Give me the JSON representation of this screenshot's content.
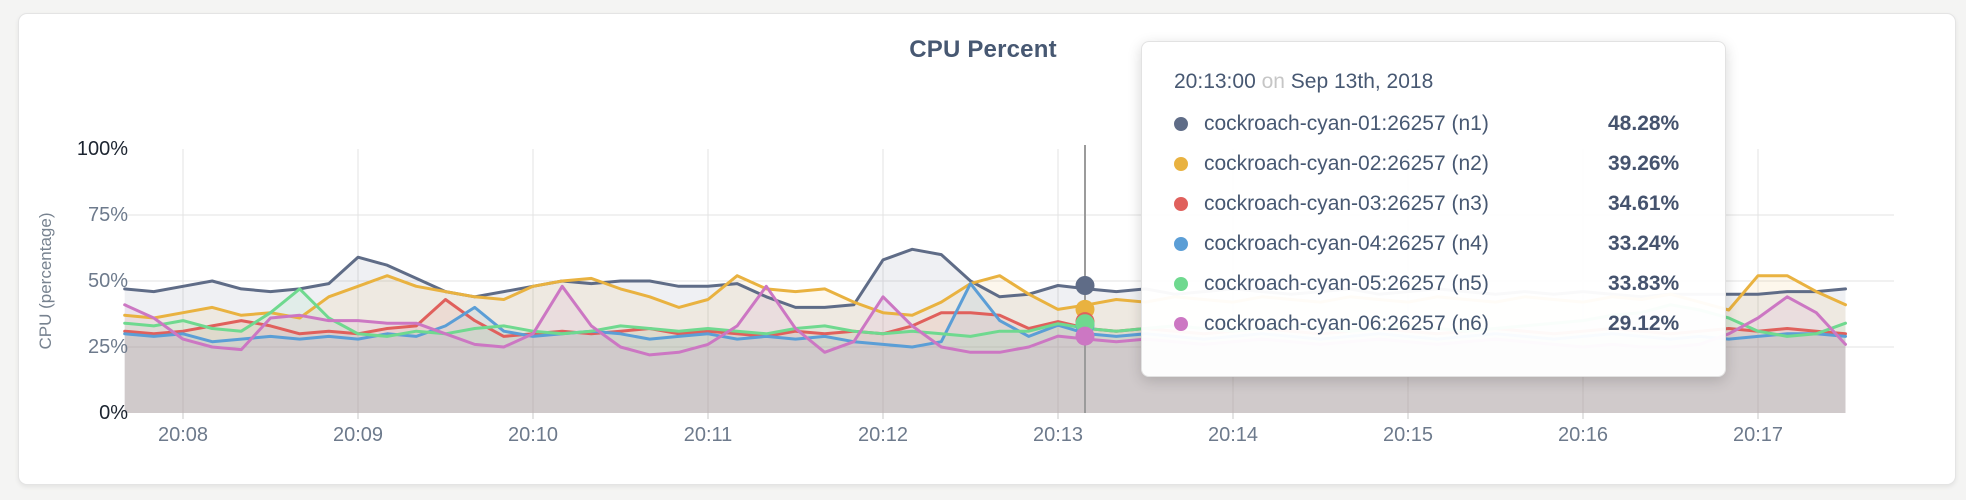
{
  "tooltip": {
    "time": "20:13:00",
    "on_word": "on",
    "date": "Sep 13th, 2018"
  },
  "chart_data": {
    "type": "line",
    "title": "CPU Percent",
    "ylabel": "CPU (percentage)",
    "ylim": [
      0,
      100
    ],
    "grid": true,
    "legend_position": "tooltip-only",
    "y_ticks": [
      {
        "label": "0%",
        "value": 0,
        "emphasis": true,
        "gridline": false
      },
      {
        "label": "25%",
        "value": 25,
        "emphasis": false,
        "gridline": true
      },
      {
        "label": "50%",
        "value": 50,
        "emphasis": false,
        "gridline": true
      },
      {
        "label": "75%",
        "value": 75,
        "emphasis": false,
        "gridline": true
      },
      {
        "label": "100%",
        "value": 100,
        "emphasis": true,
        "gridline": false
      }
    ],
    "x_ticks": [
      {
        "label": "20:08",
        "time": "20:08:00"
      },
      {
        "label": "20:09",
        "time": "20:09:00"
      },
      {
        "label": "20:10",
        "time": "20:10:00"
      },
      {
        "label": "20:11",
        "time": "20:11:00"
      },
      {
        "label": "20:12",
        "time": "20:12:00"
      },
      {
        "label": "20:13",
        "time": "20:13:00"
      },
      {
        "label": "20:14",
        "time": "20:14:00"
      },
      {
        "label": "20:15",
        "time": "20:15:00"
      },
      {
        "label": "20:16",
        "time": "20:16:00"
      },
      {
        "label": "20:17",
        "time": "20:17:00"
      }
    ],
    "x_axis": {
      "start": "20:07:40",
      "end": "20:17:30",
      "step_seconds": 10
    },
    "hover": {
      "time": "20:13:00",
      "index": 32
    },
    "series": [
      {
        "id": "n1",
        "name": "cockroach-cyan-01:26257 (n1)",
        "color": "#5F6C87",
        "tooltip_value": "48.28%",
        "values": [
          47,
          46,
          48,
          50,
          47,
          46,
          47,
          49,
          59,
          56,
          51,
          46,
          44,
          46,
          48,
          50,
          49,
          50,
          50,
          48,
          48,
          49,
          44,
          40,
          40,
          41,
          58,
          62,
          60,
          50,
          44,
          45,
          48.28,
          47,
          46,
          47,
          45,
          46,
          47,
          46,
          45,
          46,
          47,
          45,
          46,
          47,
          46,
          45,
          46,
          45,
          46,
          45,
          44,
          45,
          45,
          45,
          45,
          46,
          46,
          47
        ]
      },
      {
        "id": "n2",
        "name": "cockroach-cyan-02:26257 (n2)",
        "color": "#E9B240",
        "tooltip_value": "39.26%",
        "values": [
          37,
          36,
          38,
          40,
          37,
          38,
          36,
          44,
          48,
          52,
          48,
          46,
          44,
          43,
          48,
          50,
          51,
          47,
          44,
          40,
          43,
          52,
          47,
          46,
          47,
          42,
          38,
          37,
          42,
          49,
          52,
          45,
          39.26,
          41,
          43,
          42,
          44,
          43,
          42,
          44,
          43,
          42,
          44,
          43,
          42,
          44,
          43,
          42,
          44,
          43,
          42,
          44,
          43,
          45,
          42,
          39,
          52,
          52,
          46,
          41
        ]
      },
      {
        "id": "n3",
        "name": "cockroach-cyan-03:26257 (n3)",
        "color": "#E0605C",
        "tooltip_value": "34.61%",
        "values": [
          31,
          30,
          31,
          33,
          35,
          33,
          30,
          31,
          30,
          32,
          33,
          43,
          35,
          29,
          30,
          31,
          30,
          31,
          32,
          30,
          31,
          30,
          29,
          31,
          30,
          31,
          30,
          33,
          38,
          38,
          37,
          32,
          34.61,
          32,
          31,
          32,
          31,
          30,
          31,
          32,
          31,
          30,
          31,
          32,
          31,
          30,
          31,
          32,
          31,
          30,
          31,
          32,
          31,
          30,
          31,
          32,
          31,
          32,
          31,
          30
        ]
      },
      {
        "id": "n4",
        "name": "cockroach-cyan-04:26257 (n4)",
        "color": "#5B9ED6",
        "tooltip_value": "33.24%",
        "values": [
          30,
          29,
          30,
          27,
          28,
          29,
          28,
          29,
          28,
          30,
          29,
          33,
          40,
          31,
          29,
          30,
          31,
          30,
          28,
          29,
          30,
          28,
          29,
          28,
          29,
          27,
          26,
          25,
          27,
          49,
          35,
          29,
          33.24,
          30,
          29,
          30,
          29,
          28,
          29,
          30,
          29,
          28,
          29,
          30,
          29,
          28,
          29,
          30,
          29,
          28,
          29,
          30,
          29,
          28,
          29,
          28,
          29,
          30,
          30,
          29
        ]
      },
      {
        "id": "n5",
        "name": "cockroach-cyan-05:26257 (n5)",
        "color": "#6FD98F",
        "tooltip_value": "33.83%",
        "values": [
          34,
          33,
          35,
          32,
          31,
          38,
          47,
          36,
          30,
          29,
          31,
          30,
          32,
          33,
          31,
          30,
          31,
          33,
          32,
          31,
          32,
          31,
          30,
          32,
          33,
          31,
          30,
          31,
          30,
          29,
          31,
          31,
          33.83,
          32,
          31,
          32,
          33,
          32,
          31,
          32,
          33,
          32,
          31,
          32,
          33,
          32,
          31,
          32,
          33,
          34,
          35,
          37,
          38,
          41,
          39,
          36,
          31,
          29,
          30,
          34
        ]
      },
      {
        "id": "n6",
        "name": "cockroach-cyan-06:26257 (n6)",
        "color": "#CC77C3",
        "tooltip_value": "29.12%",
        "values": [
          41,
          36,
          28,
          25,
          24,
          36,
          37,
          35,
          35,
          34,
          34,
          30,
          26,
          25,
          30,
          48,
          33,
          25,
          22,
          23,
          26,
          33,
          48,
          32,
          23,
          27,
          44,
          33,
          25,
          23,
          23,
          25,
          29.12,
          28,
          27,
          28,
          27,
          26,
          27,
          28,
          27,
          26,
          27,
          28,
          27,
          26,
          27,
          28,
          27,
          26,
          25,
          26,
          25,
          25,
          26,
          30,
          36,
          44,
          38,
          26
        ]
      }
    ],
    "colors": {
      "axis_text": "#6d7a8c",
      "axis_text_emphasis": "#1c2430",
      "gridline": "#e3e3e3",
      "hover_line": "#9b9b9b",
      "title_text": "#475872"
    }
  }
}
